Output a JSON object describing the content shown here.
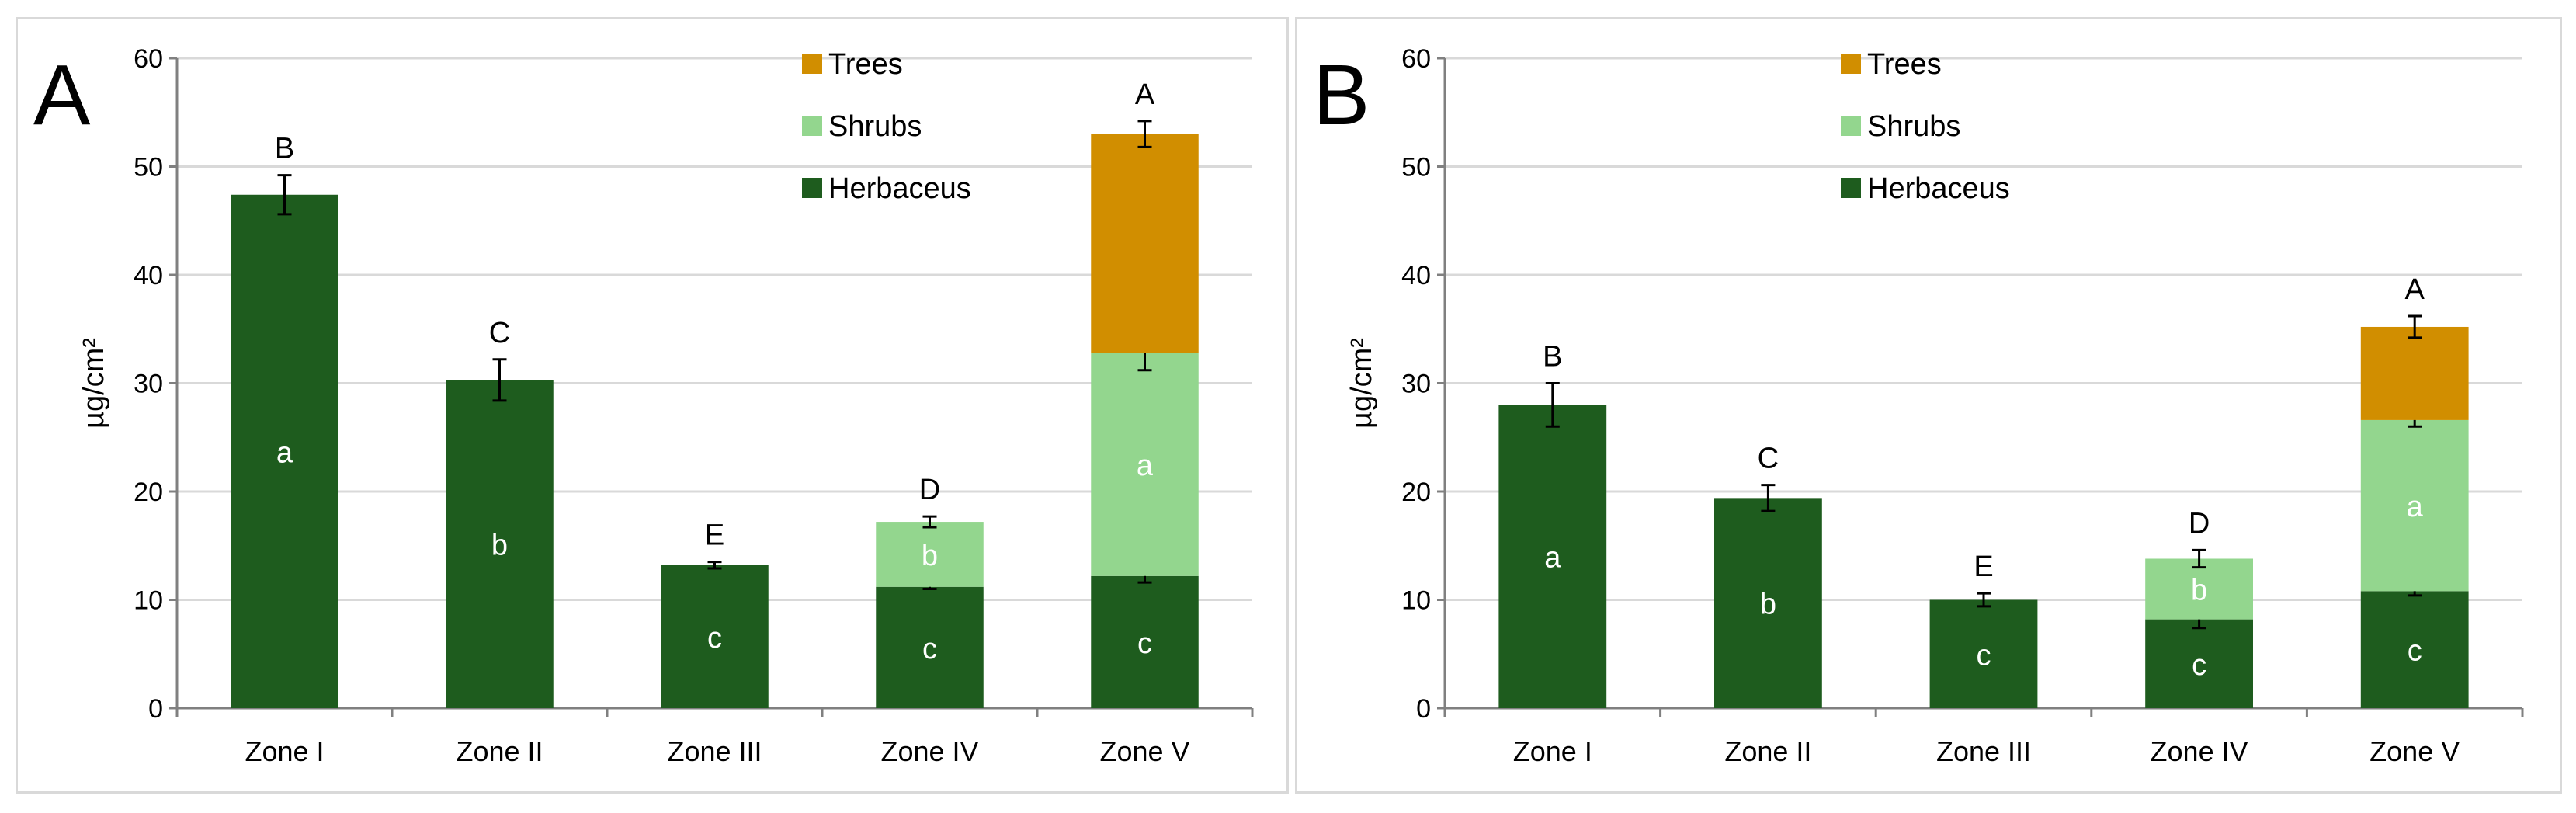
{
  "colors": {
    "trees": "#D18E00",
    "shrubs": "#93D68E",
    "herbaceus": "#1E5C1E",
    "axis": "#808080",
    "grid": "#d9d9d9"
  },
  "chart_data": [
    {
      "panel": "A",
      "type": "bar",
      "stacked": true,
      "ylabel": "µg/cm²",
      "ylim": [
        0,
        60
      ],
      "yticks": [
        "0",
        "10",
        "20",
        "30",
        "40",
        "50",
        "60"
      ],
      "categories": [
        "Zone I",
        "Zone II",
        "Zone III",
        "Zone IV",
        "Zone V"
      ],
      "legend": [
        "Trees",
        "Shrubs",
        "Herbaceus"
      ],
      "legend_position": "top-right",
      "series": [
        {
          "name": "Herbaceus",
          "values": [
            47.4,
            30.3,
            13.2,
            11.2,
            12.2
          ],
          "errors": [
            1.8,
            1.9,
            0.3,
            0.2,
            0.6
          ],
          "labels": [
            "a",
            "b",
            "c",
            "c",
            "c"
          ]
        },
        {
          "name": "Shrubs",
          "values": [
            0,
            0,
            0,
            6.0,
            20.6
          ],
          "errors": [
            0,
            0,
            0,
            0.5,
            1.6
          ],
          "labels": [
            "",
            "",
            "",
            "b",
            "a"
          ]
        },
        {
          "name": "Trees",
          "values": [
            0,
            0,
            0,
            0,
            20.2
          ],
          "errors": [
            0,
            0,
            0,
            0,
            1.2
          ],
          "labels": [
            "",
            "",
            "",
            "",
            ""
          ]
        }
      ],
      "top_labels": [
        "B",
        "C",
        "E",
        "D",
        "A"
      ]
    },
    {
      "panel": "B",
      "type": "bar",
      "stacked": true,
      "ylabel": "µg/cm²",
      "ylim": [
        0,
        60
      ],
      "yticks": [
        "0",
        "10",
        "20",
        "30",
        "40",
        "50",
        "60"
      ],
      "categories": [
        "Zone I",
        "Zone II",
        "Zone III",
        "Zone IV",
        "Zone V"
      ],
      "legend": [
        "Trees",
        "Shrubs",
        "Herbaceus"
      ],
      "legend_position": "top-center",
      "series": [
        {
          "name": "Herbaceus",
          "values": [
            28.0,
            19.4,
            10.0,
            8.2,
            10.8
          ],
          "errors": [
            2.0,
            1.2,
            0.6,
            0.8,
            0.4
          ],
          "labels": [
            "a",
            "b",
            "c",
            "c",
            "c"
          ]
        },
        {
          "name": "Shrubs",
          "values": [
            0,
            0,
            0,
            5.6,
            15.8
          ],
          "errors": [
            0,
            0,
            0,
            0.8,
            0.6
          ],
          "labels": [
            "",
            "",
            "",
            "b",
            "a"
          ]
        },
        {
          "name": "Trees",
          "values": [
            0,
            0,
            0,
            0,
            8.6
          ],
          "errors": [
            0,
            0,
            0,
            0,
            1.0
          ],
          "labels": [
            "",
            "",
            "",
            "",
            ""
          ]
        }
      ],
      "top_labels": [
        "B",
        "C",
        "E",
        "D",
        "A"
      ]
    }
  ]
}
